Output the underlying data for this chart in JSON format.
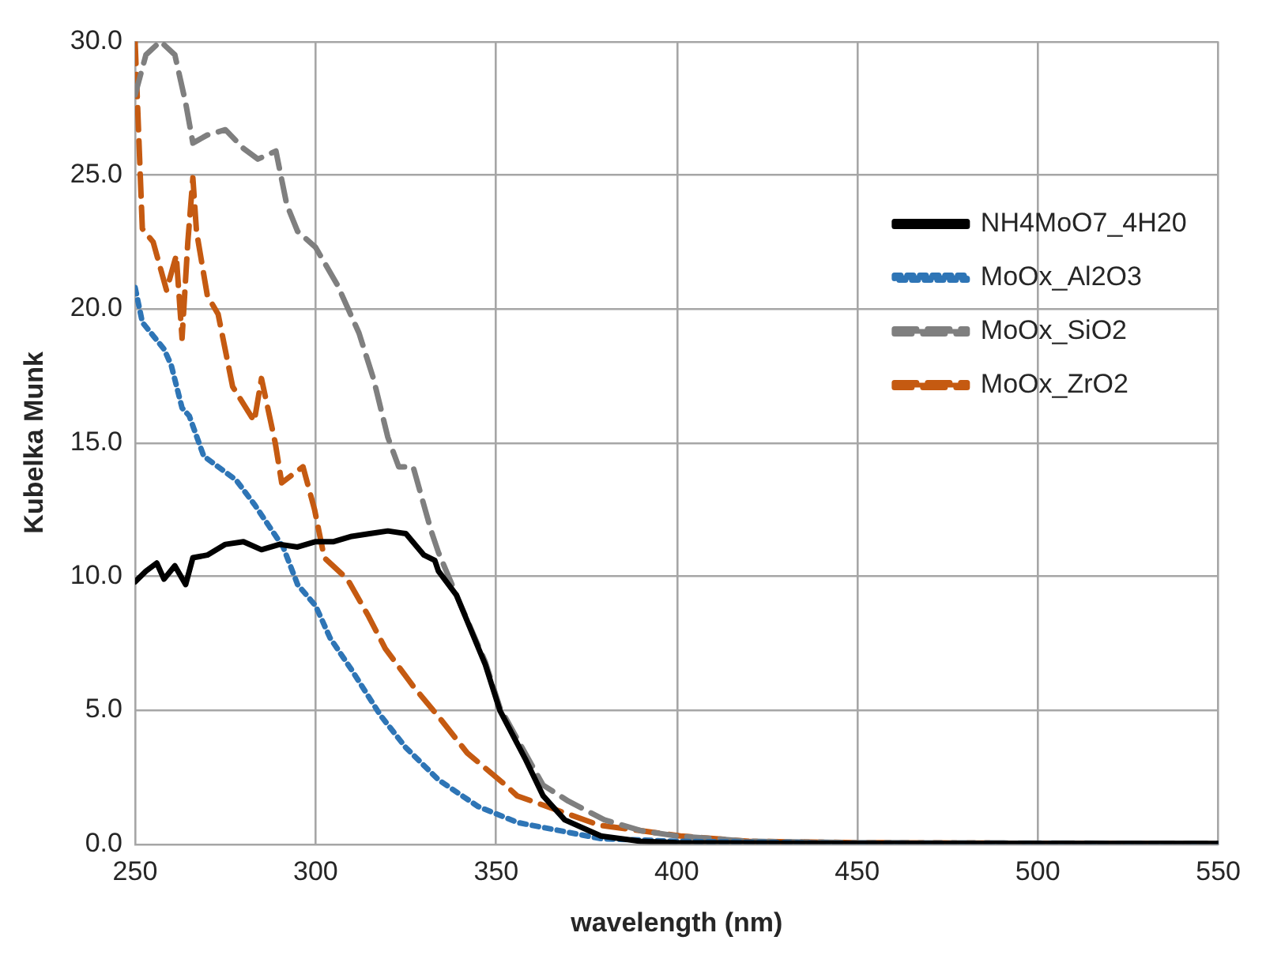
{
  "chart_data": {
    "type": "line",
    "xlabel": "wavelength (nm)",
    "ylabel": "Kubelka Munk",
    "xlim": [
      250,
      550
    ],
    "xticks": [
      250,
      300,
      350,
      400,
      450,
      500,
      550
    ],
    "ylim": [
      0,
      30
    ],
    "yticks": [
      {
        "value": 0,
        "label": "0.0"
      },
      {
        "value": 5,
        "label": "5.0"
      },
      {
        "value": 10,
        "label": "10.0"
      },
      {
        "value": 15,
        "label": "15.0"
      },
      {
        "value": 20,
        "label": "20.0"
      },
      {
        "value": 25,
        "label": "25.0"
      },
      {
        "value": 30,
        "label": "30.0"
      }
    ],
    "grid": true,
    "legend": "top right",
    "marker": "none",
    "series": [
      {
        "name": "NH4MoO7_4H20",
        "color": "#000000",
        "line_style": "solid",
        "x": [
          250,
          253,
          256,
          258,
          261,
          264,
          266,
          270,
          275,
          280,
          285,
          290,
          295,
          300,
          305,
          310,
          315,
          320,
          325,
          330,
          333,
          334,
          339,
          347,
          351,
          358,
          363,
          369,
          379,
          390,
          400,
          450,
          500,
          550
        ],
        "values": [
          9.8,
          10.2,
          10.5,
          9.9,
          10.4,
          9.7,
          10.7,
          10.8,
          11.2,
          11.3,
          11.0,
          11.2,
          11.1,
          11.3,
          11.3,
          11.5,
          11.6,
          11.7,
          11.6,
          10.8,
          10.6,
          10.2,
          9.3,
          6.7,
          5.0,
          3.2,
          1.8,
          0.9,
          0.3,
          0.1,
          0.05,
          0.02,
          0.02,
          0.02
        ]
      },
      {
        "name": "MoOx_Al2O3",
        "color": "#2e75b6",
        "line_style": "dotted",
        "x": [
          250,
          252,
          255,
          258,
          260,
          263,
          265,
          269,
          272,
          278,
          283,
          287,
          291,
          295,
          300,
          304,
          310,
          318,
          325,
          334,
          345,
          356,
          379,
          400,
          450,
          550
        ],
        "values": [
          20.8,
          19.5,
          19.0,
          18.5,
          17.9,
          16.3,
          16.0,
          14.5,
          14.2,
          13.6,
          12.7,
          11.9,
          11.1,
          9.7,
          8.9,
          7.7,
          6.5,
          4.8,
          3.6,
          2.4,
          1.4,
          0.8,
          0.2,
          0.1,
          0.02,
          0
        ]
      },
      {
        "name": "MoOx_SiO2",
        "color": "#7f7f7f",
        "line_style": "dashed",
        "x": [
          250,
          253,
          257,
          261,
          264,
          266,
          270,
          275,
          280,
          284,
          289,
          292,
          295,
          300,
          306,
          312,
          316,
          320,
          323,
          327,
          332,
          334,
          339,
          347,
          351,
          358,
          363,
          370,
          380,
          390,
          400,
          420,
          450,
          550
        ],
        "values": [
          28.0,
          29.5,
          30.0,
          29.5,
          27.7,
          26.2,
          26.5,
          26.7,
          26.0,
          25.6,
          25.9,
          23.9,
          22.9,
          22.3,
          20.9,
          19.1,
          17.4,
          15.2,
          14.1,
          14.1,
          11.7,
          10.9,
          9.3,
          6.8,
          5.1,
          3.4,
          2.2,
          1.6,
          0.9,
          0.5,
          0.3,
          0.1,
          0.05,
          0.02
        ]
      },
      {
        "name": "MoOx_ZrO2",
        "color": "#c55a11",
        "line_style": "dashed",
        "x": [
          250,
          251,
          252,
          255,
          258.7,
          261.4,
          263,
          264.6,
          266,
          267,
          270,
          273,
          277,
          283,
          285,
          288.8,
          290.6,
          296.5,
          299.7,
          302.4,
          308.8,
          314.7,
          319.3,
          327,
          334.4,
          342,
          352.6,
          355.8,
          378.6,
          401,
          420,
          450,
          550
        ],
        "values": [
          30.0,
          26.5,
          23.0,
          22.5,
          20.7,
          22.0,
          18.9,
          22.5,
          24.9,
          22.9,
          20.5,
          19.8,
          17.1,
          15.8,
          17.4,
          15.0,
          13.5,
          14.1,
          12.5,
          10.7,
          9.9,
          8.5,
          7.3,
          5.9,
          4.7,
          3.4,
          2.2,
          1.8,
          0.7,
          0.3,
          0.1,
          0.05,
          0
        ]
      }
    ]
  }
}
